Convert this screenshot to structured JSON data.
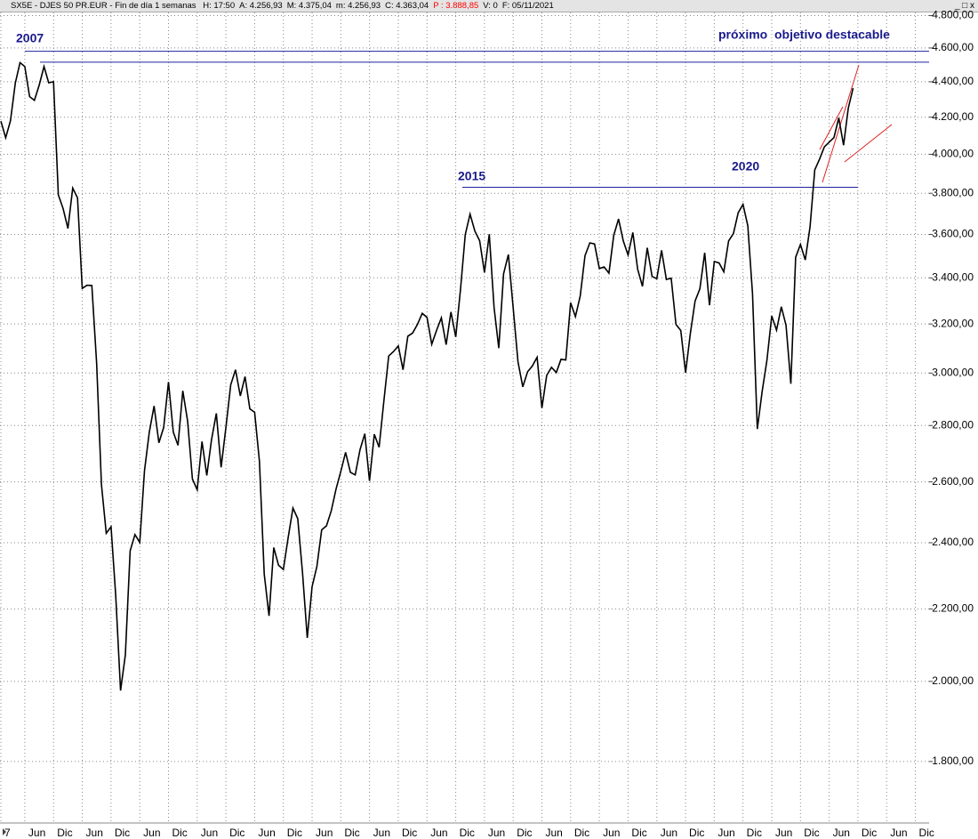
{
  "chart_data": {
    "type": "line",
    "title": "SX5E - DJES 50 PR.EUR - Fin de día 1 semanas",
    "header_fields": [
      {
        "text": "H: 17:50"
      },
      {
        "text": "A: 4.256,93"
      },
      {
        "text": "M: 4.375,04"
      },
      {
        "text": "m: 4.256,93"
      },
      {
        "text": "C: 4.363,04"
      },
      {
        "text": "P : 3.888,85",
        "color": "#ff0000"
      },
      {
        "text": "V: 0"
      },
      {
        "text": "F: 05/11/2021"
      }
    ],
    "annotations": [
      {
        "text": "2007"
      },
      {
        "text": "2015"
      },
      {
        "text": "2020"
      },
      {
        "text": "próximo  objetivo destacable"
      }
    ],
    "hlines": [
      4580,
      4515,
      3830
    ],
    "hline_color": "#2020a0",
    "color": "#000000",
    "log_scale": true,
    "grid": true,
    "ylim": [
      1670,
      4820
    ],
    "yticks": [
      {
        "value": 1800,
        "label": "1.800,00"
      },
      {
        "value": 2000,
        "label": "2.000,00"
      },
      {
        "value": 2200,
        "label": "2.200,00"
      },
      {
        "value": 2400,
        "label": "2.400,00"
      },
      {
        "value": 2600,
        "label": "2.600,00"
      },
      {
        "value": 2800,
        "label": "2.800,00"
      },
      {
        "value": 3000,
        "label": "3.000,00"
      },
      {
        "value": 3200,
        "label": "3.200,00"
      },
      {
        "value": 3400,
        "label": "3.400,00"
      },
      {
        "value": 3600,
        "label": "3.600,00"
      },
      {
        "value": 3800,
        "label": "3.800,00"
      },
      {
        "value": 4000,
        "label": "4.000,00"
      },
      {
        "value": 4200,
        "label": "4.200,00"
      },
      {
        "value": 4400,
        "label": "4.400,00"
      },
      {
        "value": 4600,
        "label": "4.600,00"
      },
      {
        "value": 4800,
        "label": "4.800,00"
      }
    ],
    "categories": [
      "7",
      null,
      null,
      null,
      null,
      "Jun",
      null,
      null,
      null,
      null,
      null,
      "Dic",
      null,
      null,
      null,
      null,
      null,
      "Jun",
      null,
      null,
      null,
      null,
      null,
      "Dic",
      null,
      null,
      null,
      null,
      null,
      "Jun",
      null,
      null,
      null,
      null,
      null,
      "Dic",
      null,
      null,
      null,
      null,
      null,
      "Jun",
      null,
      null,
      null,
      null,
      null,
      "Dic",
      null,
      null,
      null,
      null,
      null,
      "Jun",
      null,
      null,
      null,
      null,
      null,
      "Dic",
      null,
      null,
      null,
      null,
      null,
      "Jun",
      null,
      null,
      null,
      null,
      null,
      "Dic",
      null,
      null,
      null,
      null,
      null,
      "Jun",
      null,
      null,
      null,
      null,
      null,
      "Dic",
      null,
      null,
      null,
      null,
      null,
      "Jun",
      null,
      null,
      null,
      null,
      null,
      "Dic",
      null,
      null,
      null,
      null,
      null,
      "Jun",
      null,
      null,
      null,
      null,
      null,
      "Dic",
      null,
      null,
      null,
      null,
      null,
      "Jun",
      null,
      null,
      null,
      null,
      null,
      "Dic",
      null,
      null,
      null,
      null,
      null,
      "Jun",
      null,
      null,
      null,
      null,
      null,
      "Dic",
      null,
      null,
      null,
      null,
      null,
      "Jun",
      null,
      null,
      null,
      null,
      null,
      "Dic",
      null,
      null,
      null,
      null,
      null,
      "Jun",
      null,
      null,
      null,
      null,
      null,
      "Dic",
      null,
      null,
      null,
      null,
      null,
      "Jun",
      null,
      null,
      null,
      null,
      null,
      "Dic",
      null,
      null,
      null,
      null,
      null,
      "Jun",
      null,
      null,
      null,
      null,
      null,
      "Dic",
      null,
      null,
      null,
      null,
      null,
      "Jun",
      null,
      null,
      null,
      null,
      null,
      "Dic"
    ],
    "values": [
      4178,
      4088,
      4181,
      4392,
      4512,
      4489,
      4315,
      4294,
      4381,
      4489,
      4394,
      4400,
      3792,
      3724,
      3628,
      3826,
      3777,
      3353,
      3367,
      3366,
      3038,
      2591,
      2430,
      2451,
      2237,
      1976,
      2071,
      2375,
      2426,
      2401,
      2638,
      2775,
      2873,
      2737,
      2793,
      2965,
      2776,
      2728,
      2931,
      2817,
      2610,
      2573,
      2742,
      2622,
      2748,
      2845,
      2650,
      2793,
      2954,
      3013,
      2911,
      2986,
      2862,
      2849,
      2671,
      2303,
      2180,
      2385,
      2330,
      2317,
      2416,
      2512,
      2477,
      2306,
      2118,
      2265,
      2326,
      2441,
      2454,
      2503,
      2575,
      2636,
      2703,
      2633,
      2624,
      2712,
      2770,
      2603,
      2768,
      2721,
      2893,
      3068,
      3086,
      3109,
      3013,
      3149,
      3162,
      3198,
      3245,
      3228,
      3116,
      3173,
      3226,
      3114,
      3251,
      3146,
      3351,
      3599,
      3697,
      3616,
      3570,
      3424,
      3601,
      3270,
      3100,
      3418,
      3506,
      3268,
      3045,
      2946,
      3005,
      3028,
      3063,
      2865,
      2991,
      3023,
      3002,
      3055,
      3052,
      3291,
      3231,
      3320,
      3501,
      3560,
      3555,
      3442,
      3449,
      3421,
      3595,
      3674,
      3570,
      3504,
      3609,
      3439,
      3362,
      3537,
      3407,
      3396,
      3525,
      3393,
      3399,
      3198,
      3173,
      3001,
      3159,
      3298,
      3352,
      3514,
      3280,
      3474,
      3467,
      3427,
      3569,
      3604,
      3704,
      3745,
      3641,
      3329,
      2787,
      2928,
      3051,
      3234,
      3174,
      3273,
      3194,
      2958,
      3493,
      3553,
      3481,
      3636,
      3919,
      3975,
      4039,
      4064,
      4089,
      4196,
      4048,
      4250,
      4363,
      null,
      null,
      null,
      null,
      null,
      null,
      null,
      null,
      null,
      null,
      null,
      null,
      null
    ]
  }
}
